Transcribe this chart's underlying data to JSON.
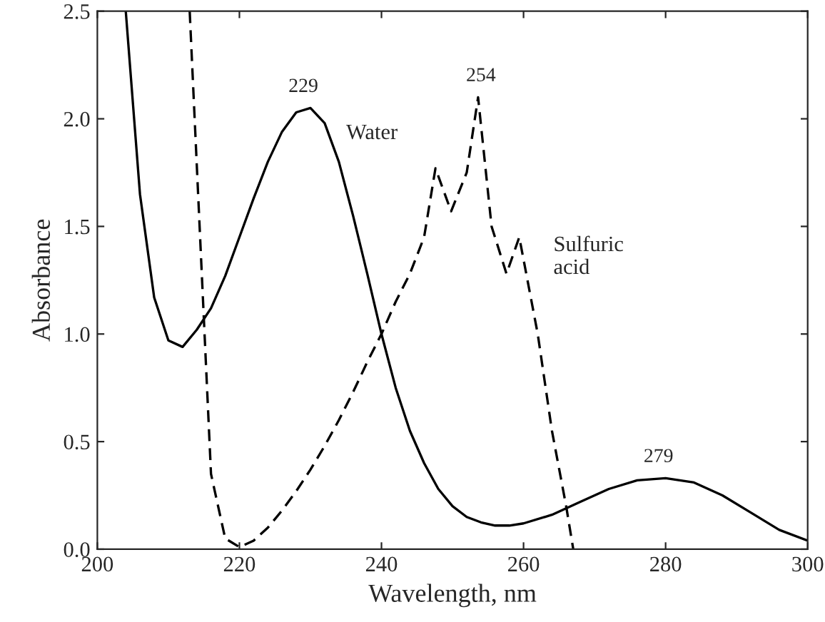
{
  "chart_data": {
    "type": "line",
    "xlabel": "Wavelength, nm",
    "ylabel": "Absorbance",
    "xlim": [
      200,
      300
    ],
    "xticks": [
      200,
      220,
      240,
      260,
      280,
      300
    ],
    "ylim": [
      0,
      2.5
    ],
    "yticks": [
      {
        "value": 0,
        "label": "0.0"
      },
      0.5,
      {
        "value": 1,
        "label": "1.0"
      },
      1.5,
      {
        "value": 2,
        "label": "2.0"
      },
      2.5
    ],
    "grid": false,
    "legend": false,
    "series": [
      {
        "name": "Water",
        "color": "#000000",
        "line_style": "solid",
        "x": [
          204,
          206,
          208,
          210,
          212,
          214,
          216,
          218,
          220,
          222,
          224,
          226,
          228,
          230,
          232,
          234,
          236,
          238,
          240,
          242,
          244,
          246,
          248,
          250,
          252,
          254,
          256,
          258,
          260,
          264,
          268,
          272,
          276,
          280,
          284,
          288,
          292,
          296,
          300
        ],
        "values": [
          2.5,
          1.65,
          1.17,
          0.97,
          0.94,
          1.02,
          1.12,
          1.27,
          1.45,
          1.63,
          1.8,
          1.94,
          2.03,
          2.05,
          1.98,
          1.8,
          1.55,
          1.28,
          1.0,
          0.75,
          0.55,
          0.4,
          0.28,
          0.2,
          0.15,
          0.125,
          0.11,
          0.11,
          0.12,
          0.16,
          0.22,
          0.28,
          0.32,
          0.33,
          0.31,
          0.25,
          0.17,
          0.09,
          0.04
        ]
      },
      {
        "name": "Sulfuric acid",
        "color": "#000000",
        "line_style": "dashed",
        "x": [
          213,
          216,
          218,
          220,
          222,
          224,
          226,
          228,
          230,
          232,
          234,
          236,
          238,
          240,
          242,
          244,
          246,
          247.6,
          249.8,
          252,
          253.6,
          255.5,
          257.6,
          259.4,
          262,
          264,
          266,
          267
        ],
        "values": [
          2.5,
          0.35,
          0.05,
          0.01,
          0.04,
          0.1,
          0.18,
          0.27,
          0.37,
          0.48,
          0.6,
          0.73,
          0.87,
          1.0,
          1.15,
          1.28,
          1.45,
          1.77,
          1.57,
          1.75,
          2.1,
          1.5,
          1.28,
          1.45,
          1.0,
          0.55,
          0.2,
          0.0
        ]
      }
    ],
    "annotations": [
      {
        "text": "229",
        "x": 229,
        "y": 2.05
      },
      {
        "text": "254",
        "x": 254,
        "y": 2.1
      },
      {
        "text": "279",
        "x": 279,
        "y": 0.33
      }
    ]
  }
}
